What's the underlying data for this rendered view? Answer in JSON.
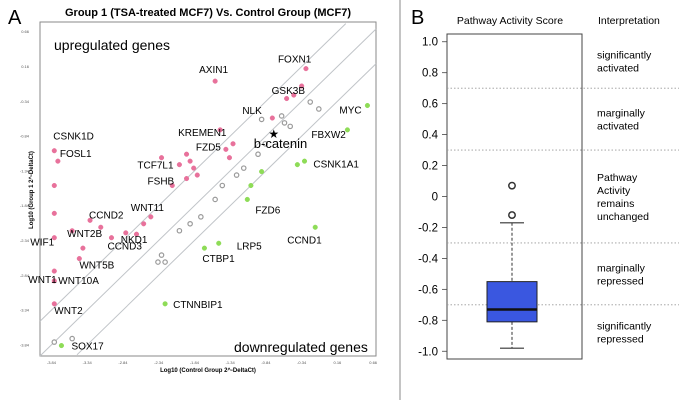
{
  "panel_a": {
    "letter": "A",
    "title": "Group 1 (TSA-treated MCF7) Vs. Control Group (MCF7)",
    "upregulated_label": "upregulated genes",
    "downregulated_label": "downregulated genes",
    "colors": {
      "up": "#e8719b",
      "down": "#8edc57",
      "neutral": "#9a9a9a",
      "line": "#c0c4c8",
      "frame": "#8a8a8a"
    }
  },
  "panel_b": {
    "letter": "B",
    "title": "Pathway Activity Score",
    "interpretation_header": "Interpretation",
    "interpretations": [
      {
        "lines": [
          "significantly",
          "activated"
        ]
      },
      {
        "lines": [
          "marginally",
          "activated"
        ]
      },
      {
        "lines": [
          "Pathway",
          "Activity",
          "remains",
          "unchanged"
        ]
      },
      {
        "lines": [
          "marginally",
          "repressed"
        ]
      },
      {
        "lines": [
          "significantly",
          "repressed"
        ]
      }
    ],
    "box_color": "#3a57e0"
  },
  "chart_data": [
    {
      "type": "scatter",
      "title": "Group 1 (TSA-treated MCF7) Vs. Control Group (MCF7)",
      "xlabel": "Log10 (Control Group 2^-DeltaCt)",
      "ylabel": "Log10 (Group 1 2^-DeltaCt)",
      "x_tick_labels": [
        "-3.84",
        "-3.34",
        "-2.84",
        "-2.34",
        "-1.84",
        "-1.34",
        "-0.84",
        "-0.34",
        "0.16",
        "0.66"
      ],
      "y_tick_labels": [
        "0.66",
        "0.16",
        "-0.34",
        "-0.84",
        "-1.34",
        "-1.84",
        "-2.34",
        "-2.84",
        "-3.34",
        "-3.84"
      ],
      "xlim": [
        -4.0,
        0.7
      ],
      "ylim": [
        -4.0,
        0.8
      ],
      "fold_change_lines": [
        "y=x",
        "y=x+0.5",
        "y=x-0.5"
      ],
      "annotations": [
        "upregulated genes",
        "downregulated genes"
      ],
      "points": [
        {
          "label": "AXIN1",
          "x": -1.55,
          "y": -0.05,
          "group": "up"
        },
        {
          "label": "FOXN1",
          "x": -0.28,
          "y": 0.13,
          "group": "up"
        },
        {
          "label": "GSK3B",
          "x": -0.34,
          "y": -0.12,
          "group": "up"
        },
        {
          "label": "MYC",
          "x": 0.58,
          "y": -0.4,
          "group": "down"
        },
        {
          "label": "KREMEN1",
          "x": -1.48,
          "y": -0.75,
          "group": "up"
        },
        {
          "label": "NLK",
          "x": -0.75,
          "y": -0.58,
          "group": "up"
        },
        {
          "label": "FBXW2",
          "x": 0.3,
          "y": -0.75,
          "group": "down"
        },
        {
          "label": "b-catenin",
          "x": -0.73,
          "y": -0.81,
          "group": "neutral",
          "marker": "star"
        },
        {
          "label": "FZD5",
          "x": -1.4,
          "y": -1.03,
          "group": "up"
        },
        {
          "label": "CSNK1D",
          "x": -3.8,
          "y": -1.05,
          "group": "up"
        },
        {
          "label": "FOSL1",
          "x": -3.75,
          "y": -1.2,
          "group": "up"
        },
        {
          "label": "CSNK1A1",
          "x": -0.4,
          "y": -1.25,
          "group": "down"
        },
        {
          "label": "TCF7L1",
          "x": -2.05,
          "y": -1.25,
          "group": "up"
        },
        {
          "label": "FSHB",
          "x": -1.95,
          "y": -1.45,
          "group": "up"
        },
        {
          "label": "FZD6",
          "x": -1.1,
          "y": -1.75,
          "group": "down"
        },
        {
          "label": "CCND2",
          "x": -3.3,
          "y": -2.05,
          "group": "up"
        },
        {
          "label": "WNT11",
          "x": -2.45,
          "y": -2.0,
          "group": "up"
        },
        {
          "label": "WNT2B",
          "x": -3.55,
          "y": -2.2,
          "group": "up"
        },
        {
          "label": "NKD1",
          "x": -2.8,
          "y": -2.23,
          "group": "up"
        },
        {
          "label": "WIF1",
          "x": -3.8,
          "y": -2.3,
          "group": "up"
        },
        {
          "label": "CCND3",
          "x": -3.0,
          "y": -2.3,
          "group": "up"
        },
        {
          "label": "LRP5",
          "x": -1.5,
          "y": -2.38,
          "group": "down"
        },
        {
          "label": "CCND1",
          "x": -0.15,
          "y": -2.15,
          "group": "down"
        },
        {
          "label": "WNT5B",
          "x": -3.45,
          "y": -2.6,
          "group": "up"
        },
        {
          "label": "CTBP1",
          "x": -1.7,
          "y": -2.45,
          "group": "down"
        },
        {
          "label": "WNT1",
          "x": -3.8,
          "y": -2.78,
          "group": "up"
        },
        {
          "label": "WNT10A",
          "x": -3.8,
          "y": -2.92,
          "group": "up"
        },
        {
          "label": "WNT2",
          "x": -3.8,
          "y": -3.25,
          "group": "up"
        },
        {
          "label": "CTNNBIP1",
          "x": -2.25,
          "y": -3.25,
          "group": "down"
        },
        {
          "label": "SOX17",
          "x": -3.7,
          "y": -3.85,
          "group": "down"
        },
        {
          "label": "",
          "x": -1.95,
          "y": -1.1,
          "group": "up"
        },
        {
          "label": "",
          "x": -1.9,
          "y": -1.2,
          "group": "up"
        },
        {
          "label": "",
          "x": -1.85,
          "y": -1.3,
          "group": "up"
        },
        {
          "label": "",
          "x": -1.8,
          "y": -1.4,
          "group": "up"
        },
        {
          "label": "",
          "x": -1.35,
          "y": -1.15,
          "group": "up"
        },
        {
          "label": "",
          "x": -1.3,
          "y": -0.95,
          "group": "up"
        },
        {
          "label": "",
          "x": -2.15,
          "y": -1.55,
          "group": "up"
        },
        {
          "label": "",
          "x": -2.3,
          "y": -1.15,
          "group": "up"
        },
        {
          "label": "",
          "x": -3.8,
          "y": -1.55,
          "group": "up"
        },
        {
          "label": "",
          "x": -3.8,
          "y": -1.95,
          "group": "up"
        },
        {
          "label": "",
          "x": -2.65,
          "y": -2.25,
          "group": "up"
        },
        {
          "label": "",
          "x": -2.55,
          "y": -2.1,
          "group": "up"
        },
        {
          "label": "",
          "x": -3.15,
          "y": -2.15,
          "group": "up"
        },
        {
          "label": "",
          "x": -3.4,
          "y": -2.45,
          "group": "up"
        },
        {
          "label": "",
          "x": -0.55,
          "y": -0.3,
          "group": "up"
        },
        {
          "label": "",
          "x": -0.45,
          "y": -0.25,
          "group": "up"
        },
        {
          "label": "",
          "x": -0.9,
          "y": -0.6,
          "group": "neutral"
        },
        {
          "label": "",
          "x": -0.62,
          "y": -0.55,
          "group": "neutral"
        },
        {
          "label": "",
          "x": -0.58,
          "y": -0.65,
          "group": "neutral"
        },
        {
          "label": "",
          "x": -0.5,
          "y": -0.7,
          "group": "neutral"
        },
        {
          "label": "",
          "x": -0.22,
          "y": -0.35,
          "group": "neutral"
        },
        {
          "label": "",
          "x": -0.1,
          "y": -0.45,
          "group": "neutral"
        },
        {
          "label": "",
          "x": -0.85,
          "y": -0.95,
          "group": "neutral"
        },
        {
          "label": "",
          "x": -0.95,
          "y": -1.1,
          "group": "neutral"
        },
        {
          "label": "",
          "x": -1.15,
          "y": -1.3,
          "group": "neutral"
        },
        {
          "label": "",
          "x": -1.25,
          "y": -1.4,
          "group": "neutral"
        },
        {
          "label": "",
          "x": -1.45,
          "y": -1.55,
          "group": "neutral"
        },
        {
          "label": "",
          "x": -1.55,
          "y": -1.75,
          "group": "neutral"
        },
        {
          "label": "",
          "x": -1.75,
          "y": -2.0,
          "group": "neutral"
        },
        {
          "label": "",
          "x": -1.9,
          "y": -2.1,
          "group": "neutral"
        },
        {
          "label": "",
          "x": -2.05,
          "y": -2.2,
          "group": "neutral"
        },
        {
          "label": "",
          "x": -2.3,
          "y": -2.55,
          "group": "neutral"
        },
        {
          "label": "",
          "x": -2.35,
          "y": -2.65,
          "group": "neutral"
        },
        {
          "label": "",
          "x": -2.25,
          "y": -2.65,
          "group": "neutral"
        },
        {
          "label": "",
          "x": -3.8,
          "y": -3.8,
          "group": "neutral"
        },
        {
          "label": "",
          "x": -3.55,
          "y": -3.75,
          "group": "neutral"
        },
        {
          "label": "",
          "x": -0.3,
          "y": -1.2,
          "group": "down"
        },
        {
          "label": "",
          "x": -1.05,
          "y": -1.55,
          "group": "down"
        },
        {
          "label": "",
          "x": -0.9,
          "y": -1.35,
          "group": "down"
        }
      ]
    },
    {
      "type": "box",
      "title": "Pathway Activity Score",
      "ylim": [
        -1.05,
        1.05
      ],
      "y_ticks": [
        1.0,
        0.8,
        0.6,
        0.4,
        0.2,
        0,
        -0.2,
        -0.4,
        -0.6,
        -0.8,
        -1.0
      ],
      "y_tick_labels": [
        "1.0",
        "0.8",
        "0.6",
        "0.4",
        "0.2",
        "0",
        "-0.2",
        "-0.4",
        "-0.6",
        "-0.8",
        "-1.0"
      ],
      "thresholds": [
        0.7,
        0.3,
        -0.3,
        -0.7
      ],
      "box": {
        "whisker_high": -0.17,
        "q3": -0.55,
        "median": -0.73,
        "q1": -0.81,
        "whisker_low": -0.98
      },
      "outliers": [
        0.07,
        -0.12
      ]
    }
  ]
}
